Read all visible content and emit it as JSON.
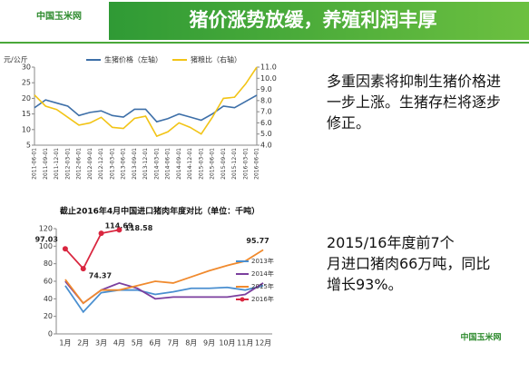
{
  "header": {
    "title": "猪价涨势放缓，养殖利润丰厚",
    "logo": "中国玉米网"
  },
  "notes": [
    "多重因素将抑制生猪价格进一步上涨。生猪存栏将逐步修正。",
    "2015/16年度前7个月进口猪肉66万吨，同比增长93%。"
  ],
  "footer_logo": "中国玉米网",
  "chart_data": [
    {
      "type": "line",
      "y_label": "元/公斤",
      "categories": [
        "2011-06-01",
        "2011-09-01",
        "2011-12-01",
        "2012-03-01",
        "2012-06-01",
        "2012-09-01",
        "2012-12-01",
        "2013-03-01",
        "2013-06-01",
        "2013-09-01",
        "2013-12-01",
        "2014-03-01",
        "2014-06-01",
        "2014-09-01",
        "2014-12-01",
        "2015-03-01",
        "2015-06-01",
        "2015-09-01",
        "2015-12-01",
        "2016-03-01",
        "2016-06-01"
      ],
      "series": [
        {
          "name": "生猪价格（左轴）",
          "color": "#3d6fa8",
          "axis": "y",
          "values": [
            17,
            19.5,
            18.5,
            17.5,
            14.5,
            15.5,
            16,
            14.5,
            14,
            16.5,
            16.5,
            12.5,
            13.5,
            15,
            14,
            13,
            15,
            17.5,
            17,
            19,
            21
          ]
        },
        {
          "name": "猪粮比（右轴）",
          "color": "#f2c416",
          "axis": "y2",
          "values": [
            8.5,
            7.5,
            7.2,
            6.5,
            5.8,
            6.0,
            6.5,
            5.6,
            5.5,
            6.4,
            6.6,
            4.8,
            5.2,
            6.0,
            5.6,
            5.0,
            6.5,
            8.2,
            8.3,
            9.5,
            11
          ]
        }
      ],
      "ylim": [
        5,
        30
      ],
      "yticks": [
        5,
        10,
        15,
        20,
        25,
        30
      ],
      "y2lim": [
        4,
        11
      ],
      "y2ticks": [
        {
          "value": 4,
          "label": "4.0"
        },
        {
          "value": 5,
          "label": "5.0"
        },
        {
          "value": 6,
          "label": "6.0"
        },
        {
          "value": 7,
          "label": "7.0"
        },
        {
          "value": 8,
          "label": "8.0"
        },
        {
          "value": 9,
          "label": "9.0"
        },
        {
          "value": 10,
          "label": "10.0"
        },
        {
          "value": 11,
          "label": "11.0"
        }
      ]
    },
    {
      "type": "line",
      "title": "截止2016年4月中国进口猪肉年度对比（单位：千吨）",
      "categories": [
        "1月",
        "2月",
        "3月",
        "4月",
        "5月",
        "6月",
        "7月",
        "8月",
        "9月",
        "10月",
        "11月",
        "12月"
      ],
      "series": [
        {
          "name": "2013年",
          "color": "#4a8fd0",
          "values": [
            55,
            25,
            47,
            50,
            50,
            45,
            48,
            52,
            52,
            53,
            50,
            55
          ]
        },
        {
          "name": "2014年",
          "color": "#7b3f9e",
          "values": [
            60,
            35,
            50,
            58,
            52,
            40,
            42,
            42,
            42,
            42,
            45,
            58
          ]
        },
        {
          "name": "2015年",
          "color": "#f08a2e",
          "values": [
            62,
            35,
            50,
            50,
            55,
            60,
            58,
            65,
            72,
            78,
            83,
            95.77
          ],
          "data_labels": "last"
        },
        {
          "name": "2016年",
          "color": "#d9263f",
          "markers": true,
          "data_labels": "all",
          "values": [
            97.03,
            74.37,
            114.69,
            118.58,
            null,
            null,
            null,
            null,
            null,
            null,
            null,
            null
          ]
        }
      ],
      "ylim": [
        0,
        120
      ],
      "yticks": [
        0,
        20,
        40,
        60,
        80,
        100,
        120
      ],
      "legend": "right"
    }
  ]
}
